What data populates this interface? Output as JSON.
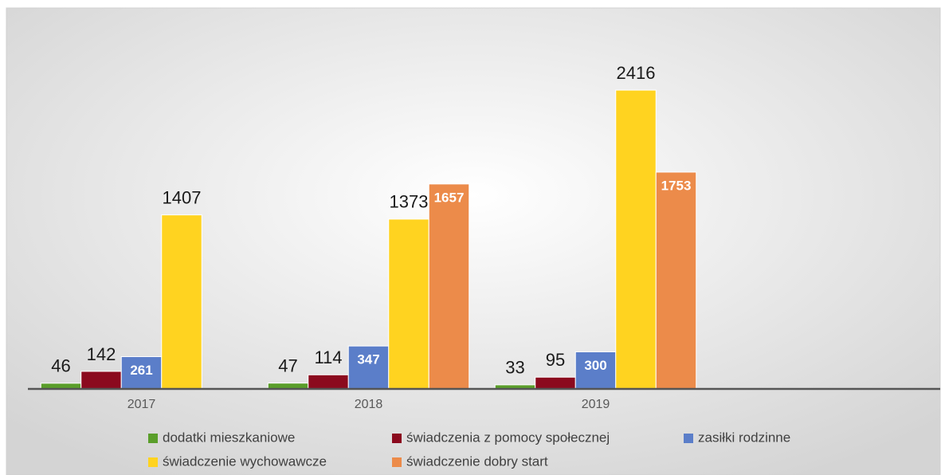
{
  "chart_data": {
    "type": "bar",
    "categories": [
      "2017",
      "2018",
      "2019",
      null
    ],
    "series": [
      {
        "name": "dodatki mieszkaniowe",
        "color": "#5a9e2a",
        "label_style": "outside",
        "values": [
          46,
          47,
          33,
          null
        ]
      },
      {
        "name": "świadczenia z pomocy społecznej",
        "color": "#8b0a1e",
        "label_style": "outside",
        "values": [
          142,
          114,
          95,
          null
        ]
      },
      {
        "name": "zasiłki rodzinne",
        "color": "#5b7ec9",
        "label_style": "inside",
        "values": [
          261,
          347,
          300,
          null
        ]
      },
      {
        "name": "świadczenie wychowawcze",
        "color": "#ffd320",
        "label_style": "outside",
        "values": [
          1407,
          1373,
          2416,
          null
        ]
      },
      {
        "name": "świadczenie dobry start",
        "color": "#ec8b4a",
        "label_style": "inside",
        "values": [
          null,
          1657,
          1753,
          null
        ]
      }
    ],
    "ylim": [
      0,
      2700
    ],
    "legend": "bottom"
  }
}
